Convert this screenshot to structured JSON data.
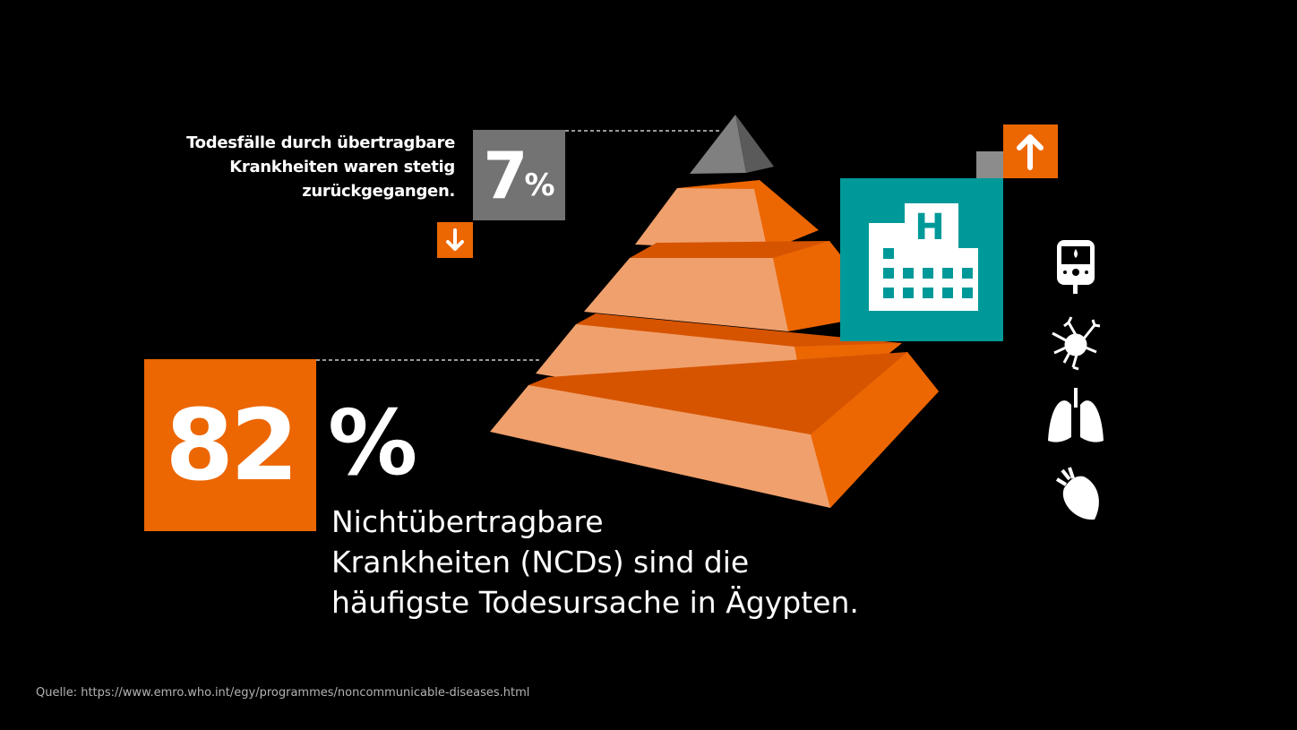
{
  "top_note": {
    "lines": [
      "Todesfälle durch übertragbare",
      "Krankheiten waren stetig",
      "zurückgegangen."
    ],
    "value": "7",
    "unit": "%",
    "trend_icon": "arrow-down-icon"
  },
  "main_stat": {
    "value": "82",
    "unit": "%",
    "lines": [
      "Nichtübertragbare",
      "Krankheiten (NCDs) sind die",
      "häufigste Todesursache in Ägypten."
    ]
  },
  "hospital": {
    "icon": "hospital-icon",
    "trend_icon": "arrow-up-icon"
  },
  "disease_icons": [
    "glucose-meter-icon",
    "cancer-cell-icon",
    "lungs-icon",
    "heart-icon"
  ],
  "source": "Quelle: https://www.emro.who.int/egy/programmes/noncommunicable-diseases.html",
  "colors": {
    "orange": "#ec6602",
    "light_orange": "#f0a06c",
    "teal": "#009999",
    "gray": "#737373",
    "background": "#000000"
  }
}
